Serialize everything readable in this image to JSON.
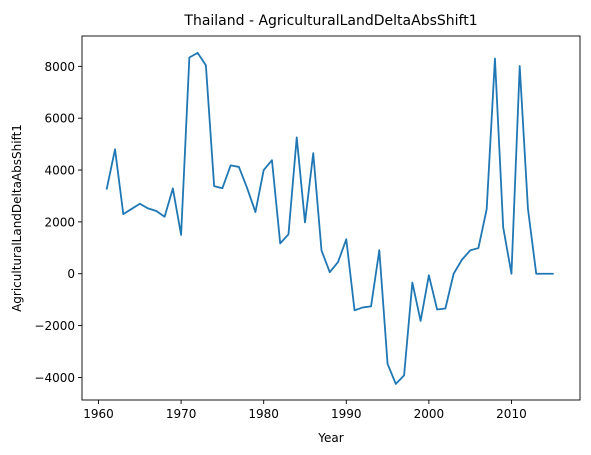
{
  "chart_data": {
    "type": "line",
    "title": "Thailand - AgriculturalLandDeltaAbsShift1",
    "xlabel": "Year",
    "ylabel": "AgriculturalLandDeltaAbsShift1",
    "xlim": [
      1958,
      2018.3
    ],
    "ylim": [
      -4870,
      9170
    ],
    "xticks": [
      1960,
      1970,
      1980,
      1990,
      2000,
      2010
    ],
    "yticks": [
      -4000,
      -2000,
      0,
      2000,
      4000,
      6000,
      8000
    ],
    "grid": false,
    "legend": "none",
    "series": [
      {
        "color": "#1f77b4",
        "x": [
          1961,
          1962,
          1963,
          1964,
          1965,
          1966,
          1967,
          1968,
          1969,
          1970,
          1971,
          1972,
          1973,
          1974,
          1975,
          1976,
          1977,
          1978,
          1979,
          1980,
          1981,
          1982,
          1983,
          1984,
          1985,
          1986,
          1987,
          1988,
          1989,
          1990,
          1991,
          1992,
          1993,
          1994,
          1995,
          1996,
          1997,
          1998,
          1999,
          2000,
          2001,
          2002,
          2003,
          2004,
          2005,
          2006,
          2007,
          2008,
          2009,
          2010,
          2011,
          2012,
          2013,
          2014,
          2015
        ],
        "y": [
          3280,
          4800,
          2300,
          2500,
          2700,
          2520,
          2420,
          2200,
          3290,
          1500,
          8340,
          8520,
          8040,
          3380,
          3300,
          4180,
          4120,
          3300,
          2380,
          4000,
          4380,
          1170,
          1520,
          5260,
          1980,
          4650,
          900,
          60,
          450,
          1330,
          -1410,
          -1300,
          -1260,
          910,
          -3480,
          -4250,
          -3920,
          -340,
          -1820,
          -60,
          -1380,
          -1340,
          0,
          540,
          900,
          990,
          2490,
          8300,
          1790,
          0,
          8010,
          2500,
          0,
          0,
          0
        ]
      }
    ]
  }
}
